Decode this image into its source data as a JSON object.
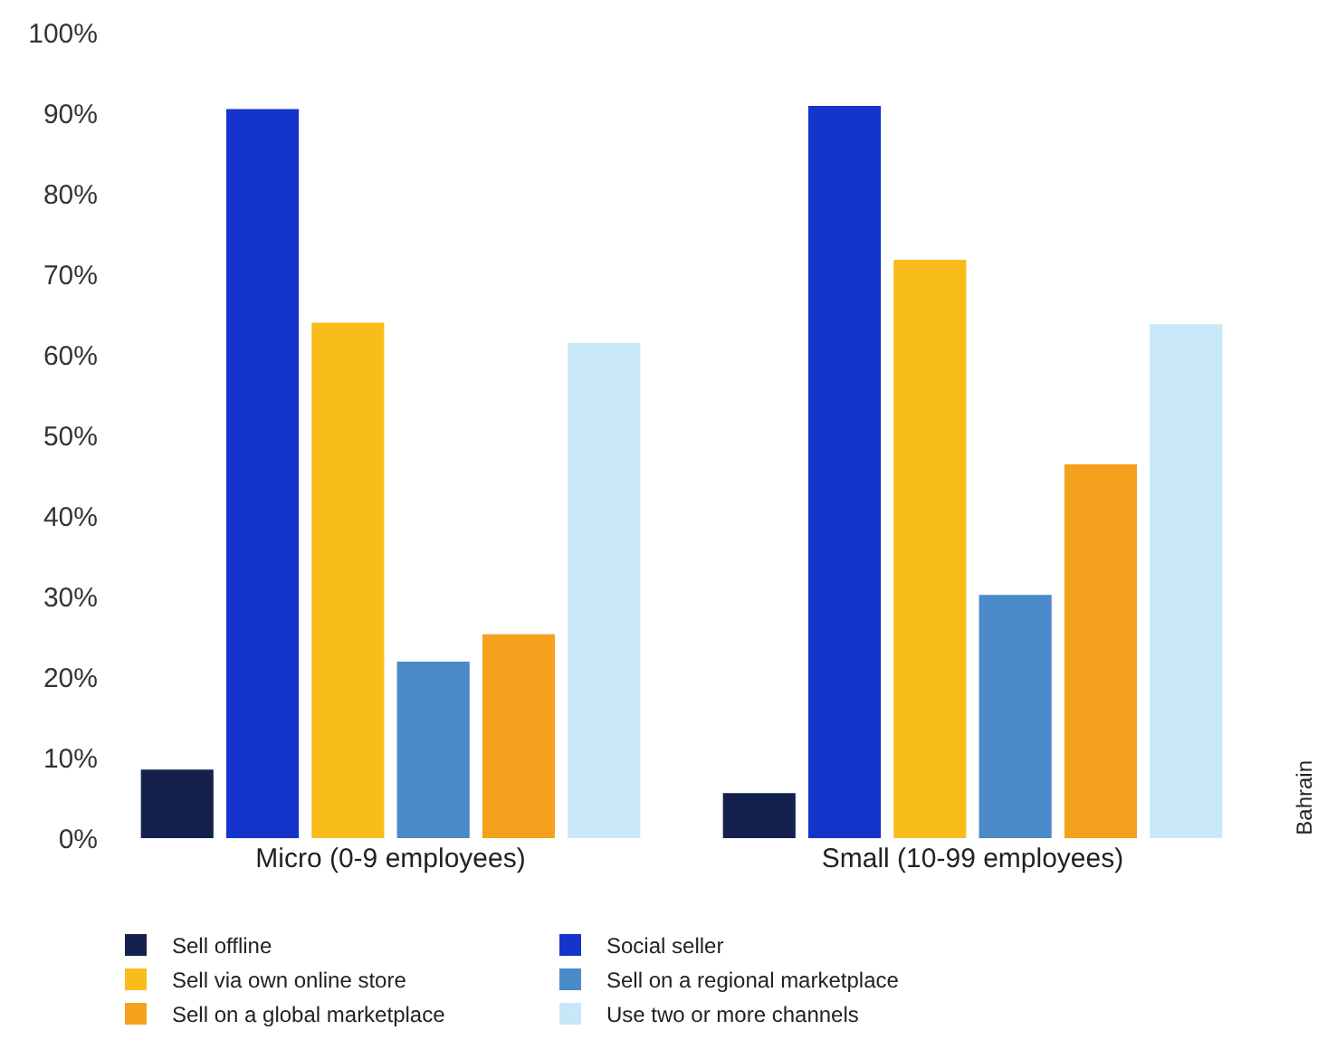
{
  "chart_data": {
    "type": "bar",
    "categories": [
      "Micro (0-9 employees)",
      "Small (10-99 employees)"
    ],
    "series": [
      {
        "name": "Sell offline",
        "color": "#14214d",
        "values": [
          8.5,
          5.6
        ]
      },
      {
        "name": "Social seller",
        "color": "#1434cb",
        "values": [
          90.5,
          90.9
        ]
      },
      {
        "name": "Sell via own online store",
        "color": "#f9bd1b",
        "values": [
          64.0,
          71.8
        ]
      },
      {
        "name": "Sell on a regional marketplace",
        "color": "#4a8ac8",
        "values": [
          21.9,
          30.2
        ]
      },
      {
        "name": "Sell on a global marketplace",
        "color": "#f4a11e",
        "values": [
          25.3,
          46.4
        ]
      },
      {
        "name": "Use two or more channels",
        "color": "#c8e8f8",
        "values": [
          61.5,
          63.8
        ]
      }
    ],
    "ylim": [
      0,
      100
    ],
    "yticks": [
      {
        "value": 0,
        "label": "0%"
      },
      {
        "value": 10,
        "label": "10%"
      },
      {
        "value": 20,
        "label": "20%"
      },
      {
        "value": 30,
        "label": "30%"
      },
      {
        "value": 40,
        "label": "40%"
      },
      {
        "value": 50,
        "label": "50%"
      },
      {
        "value": 60,
        "label": "60%"
      },
      {
        "value": 70,
        "label": "70%"
      },
      {
        "value": 80,
        "label": "80%"
      },
      {
        "value": 90,
        "label": "90%"
      },
      {
        "value": 100,
        "label": "100%"
      }
    ],
    "annotations": [
      "Bahrain"
    ],
    "grid": false,
    "legend": "bottom"
  }
}
